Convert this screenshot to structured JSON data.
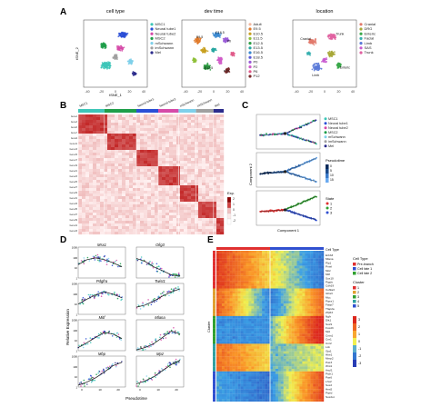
{
  "panels": {
    "A": {
      "letter": "A",
      "titles": [
        "cell type",
        "dev time",
        "location"
      ],
      "axis_x": "tSNE_1",
      "axis_y": "tSNE_2",
      "ticks": [
        "-40",
        "-20",
        "0",
        "20",
        "40"
      ],
      "legend_celltype": [
        {
          "label": "MSC1",
          "color": "#3ec6b8"
        },
        {
          "label": "Neural tube1",
          "color": "#2a4fd6"
        },
        {
          "label": "Neural tube2",
          "color": "#d64aa8"
        },
        {
          "label": "MSC2",
          "color": "#1f9e4a"
        },
        {
          "label": "mSchwann",
          "color": "#7fd0ea"
        },
        {
          "label": "imSchwann",
          "color": "#a0a0a0"
        },
        {
          "label": "Mel",
          "color": "#2b2b8c"
        }
      ],
      "legend_devtime": [
        {
          "label": "Adult",
          "color": "#f2b8a0"
        },
        {
          "label": "E9.5",
          "color": "#e07a2a"
        },
        {
          "label": "E10.5",
          "color": "#c8a020"
        },
        {
          "label": "E11.5",
          "color": "#8fbf3a"
        },
        {
          "label": "E12.5",
          "color": "#2f9e44"
        },
        {
          "label": "E13.5",
          "color": "#27a6a0"
        },
        {
          "label": "E16.5",
          "color": "#3a88d0"
        },
        {
          "label": "E18.5",
          "color": "#5a5ad8"
        },
        {
          "label": "P0",
          "color": "#9a5ad8"
        },
        {
          "label": "P2",
          "color": "#d05ac8"
        },
        {
          "label": "P6",
          "color": "#e05a8a"
        },
        {
          "label": "P12",
          "color": "#7a2a2a"
        }
      ],
      "legend_location": [
        {
          "label": "Cranial",
          "color": "#e27a6c"
        },
        {
          "label": "DRG",
          "color": "#a8a838"
        },
        {
          "label": "Enteric",
          "color": "#3aa84a"
        },
        {
          "label": "Facial",
          "color": "#38b0b0"
        },
        {
          "label": "Limb",
          "color": "#5a7ad8"
        },
        {
          "label": "SAS",
          "color": "#c85ad0"
        },
        {
          "label": "Trunk",
          "color": "#e060a0"
        }
      ],
      "cluster_labels": [
        "MSC2",
        "Neural tube1",
        "MSC1",
        "Neural tube2",
        "Cranial",
        "Trunk",
        "Limb",
        "Enteric"
      ]
    },
    "B": {
      "letter": "B",
      "groups": [
        "MSC1",
        "MSC2",
        "Neural tube1",
        "Neural tube2",
        "mSchwann",
        "imSchwann",
        "Mel"
      ],
      "group_colors": [
        "#3ec6b8",
        "#1f9e4a",
        "#2a4fd6",
        "#d64aa8",
        "#7fd0ea",
        "#a0a0a0",
        "#2b2b8c"
      ],
      "scale_title": "Exp.",
      "scale_ticks": [
        "2",
        "1",
        "0",
        "-1",
        "-2"
      ]
    },
    "C": {
      "letter": "C",
      "legend_celltype": [
        "MSC1",
        "Neural tube1",
        "Neural tube2",
        "MSC2",
        "mSchwann",
        "imSchwann",
        "Mel"
      ],
      "pseudotime_title": "Pseudotime",
      "pseudotime_ticks": [
        "0",
        "5",
        "10",
        "15"
      ],
      "state_title": "State",
      "state_items": [
        {
          "label": "1",
          "color": "#e03030"
        },
        {
          "label": "2",
          "color": "#30a030"
        },
        {
          "label": "3",
          "color": "#3050d0"
        }
      ],
      "axis_x": "Component 1",
      "axis_y": "Component 2"
    },
    "D": {
      "letter": "D",
      "genes": [
        "Msx1",
        "Olig3",
        "Pdgfra",
        "Twist1",
        "Mitf",
        "Mlana",
        "Mbp",
        "Mpz"
      ],
      "axis_x": "Pseudotime",
      "axis_y": "Relative Expression",
      "xticks": [
        "0",
        "10",
        "20"
      ],
      "yticks": [
        "1000",
        "100",
        "10",
        "1"
      ]
    },
    "E": {
      "letter": "E",
      "col_label": "Cell Type",
      "cluster_axis": "Cluster",
      "legend_celltype_title": "Cell Type",
      "legend_celltype": [
        {
          "label": "Pre-branch",
          "color": "#e03030"
        },
        {
          "label": "Cell fate 1",
          "color": "#3050d0"
        },
        {
          "label": "Cell fate 2",
          "color": "#30a030"
        }
      ],
      "legend_cluster_title": "Cluster",
      "legend_cluster": [
        {
          "label": "1",
          "color": "#e03030"
        },
        {
          "label": "2",
          "color": "#e0a030"
        },
        {
          "label": "3",
          "color": "#30a030"
        },
        {
          "label": "4",
          "color": "#30a0a0"
        },
        {
          "label": "5",
          "color": "#3050d0"
        }
      ],
      "scale_ticks": [
        "3",
        "2",
        "1",
        "0",
        "-1",
        "-2",
        "-3"
      ],
      "genes": [
        "Erbb3",
        "Mlana",
        "Plp1",
        "Pmel",
        "Mpz",
        "Mitf",
        "Sox10",
        "Ptgds",
        "Cdh19",
        "Col9a3",
        "Gfra3",
        "Mcc",
        "Ptprz1",
        "Fabp7",
        "Tfap2a",
        "Zfp63",
        "Ngfr",
        "Dlk1",
        "Sox9",
        "Foxd3",
        "Mpl",
        "Cntn1",
        "Cnr1",
        "Cnr2",
        "Lck",
        "Gja1",
        "Hbe1",
        "Mmp2",
        "Pax3",
        "Wnt1",
        "Ascl1",
        "Ptch1",
        "Pax6",
        "Lhx2",
        "Sox2",
        "Hes5",
        "Ptprd",
        "Sox2ot"
      ]
    }
  },
  "chart_data": [
    {
      "type": "scatter",
      "title": "cell type",
      "xlabel": "tSNE_1",
      "ylabel": "tSNE_2",
      "xlim": [
        -45,
        45
      ],
      "ylim": [
        -45,
        45
      ],
      "series": [
        {
          "name": "MSC1",
          "x": [
            -20,
            -18,
            -15,
            -12,
            -22,
            -16
          ],
          "y": [
            -15,
            -10,
            -18,
            -12,
            -8,
            -20
          ]
        },
        {
          "name": "Neural tube1",
          "x": [
            10,
            14,
            18,
            12,
            20
          ],
          "y": [
            5,
            10,
            2,
            14,
            8
          ]
        },
        {
          "name": "Neural tube2",
          "x": [
            2,
            6,
            4,
            8
          ],
          "y": [
            28,
            32,
            25,
            30
          ]
        },
        {
          "name": "MSC2",
          "x": [
            -30,
            -26,
            -28,
            -24
          ],
          "y": [
            20,
            24,
            16,
            22
          ]
        },
        {
          "name": "mSchwann",
          "x": [
            18,
            22,
            25
          ],
          "y": [
            -18,
            -22,
            -15
          ]
        },
        {
          "name": "imSchwann",
          "x": [
            0,
            4,
            6
          ],
          "y": [
            -2,
            2,
            -6
          ]
        },
        {
          "name": "Mel",
          "x": [
            26,
            30
          ],
          "y": [
            -28,
            -25
          ]
        }
      ]
    },
    {
      "type": "line",
      "title": "Msx1",
      "xlabel": "Pseudotime",
      "ylabel": "Relative Expression",
      "xlim": [
        0,
        27
      ],
      "ylim": [
        1,
        1000
      ],
      "yscale": "log",
      "series": [
        {
          "x": [
            0,
            5,
            10,
            15,
            20,
            25
          ],
          "y": [
            20,
            60,
            90,
            60,
            30,
            12
          ]
        }
      ]
    },
    {
      "type": "line",
      "title": "Olig3",
      "xlabel": "Pseudotime",
      "ylabel": "Relative Expression",
      "xlim": [
        0,
        27
      ],
      "ylim": [
        1,
        1000
      ],
      "yscale": "log",
      "series": [
        {
          "x": [
            0,
            5,
            10,
            15,
            20,
            25
          ],
          "y": [
            80,
            40,
            12,
            5,
            2,
            1.5
          ]
        }
      ]
    },
    {
      "type": "line",
      "title": "Pdgfra",
      "xlabel": "Pseudotime",
      "ylabel": "Relative Expression",
      "xlim": [
        0,
        27
      ],
      "ylim": [
        1,
        1000
      ],
      "yscale": "log",
      "series": [
        {
          "x": [
            0,
            5,
            10,
            15,
            20,
            25
          ],
          "y": [
            10,
            30,
            80,
            150,
            90,
            40
          ]
        }
      ]
    },
    {
      "type": "line",
      "title": "Twist1",
      "xlabel": "Pseudotime",
      "ylabel": "Relative Expression",
      "xlim": [
        0,
        27
      ],
      "ylim": [
        1,
        1000
      ],
      "yscale": "log",
      "series": [
        {
          "x": [
            0,
            5,
            10,
            15,
            20,
            25
          ],
          "y": [
            5,
            8,
            20,
            60,
            150,
            300
          ]
        }
      ]
    },
    {
      "type": "line",
      "title": "Mitf",
      "xlabel": "Pseudotime",
      "ylabel": "Relative Expression",
      "xlim": [
        0,
        27
      ],
      "ylim": [
        1,
        1000
      ],
      "yscale": "log",
      "series": [
        {
          "x": [
            0,
            5,
            10,
            15,
            20,
            25
          ],
          "y": [
            2,
            6,
            20,
            60,
            40,
            15
          ]
        }
      ]
    },
    {
      "type": "line",
      "title": "Mlana",
      "xlabel": "Pseudotime",
      "ylabel": "Relative Expression",
      "xlim": [
        0,
        27
      ],
      "ylim": [
        1,
        1000
      ],
      "yscale": "log",
      "series": [
        {
          "x": [
            0,
            5,
            10,
            15,
            20,
            25
          ],
          "y": [
            1.2,
            2,
            5,
            20,
            80,
            40
          ]
        }
      ]
    },
    {
      "type": "line",
      "title": "Mbp",
      "xlabel": "Pseudotime",
      "ylabel": "Relative Expression",
      "xlim": [
        0,
        27
      ],
      "ylim": [
        1,
        1000
      ],
      "yscale": "log",
      "series": [
        {
          "x": [
            0,
            5,
            10,
            15,
            20,
            25
          ],
          "y": [
            1.5,
            3,
            8,
            30,
            120,
            250
          ]
        }
      ]
    },
    {
      "type": "line",
      "title": "Mpz",
      "xlabel": "Pseudotime",
      "ylabel": "Relative Expression",
      "xlim": [
        0,
        27
      ],
      "ylim": [
        1,
        1000
      ],
      "yscale": "log",
      "series": [
        {
          "x": [
            0,
            5,
            10,
            15,
            20,
            25
          ],
          "y": [
            2,
            4,
            10,
            40,
            150,
            400
          ]
        }
      ]
    }
  ]
}
